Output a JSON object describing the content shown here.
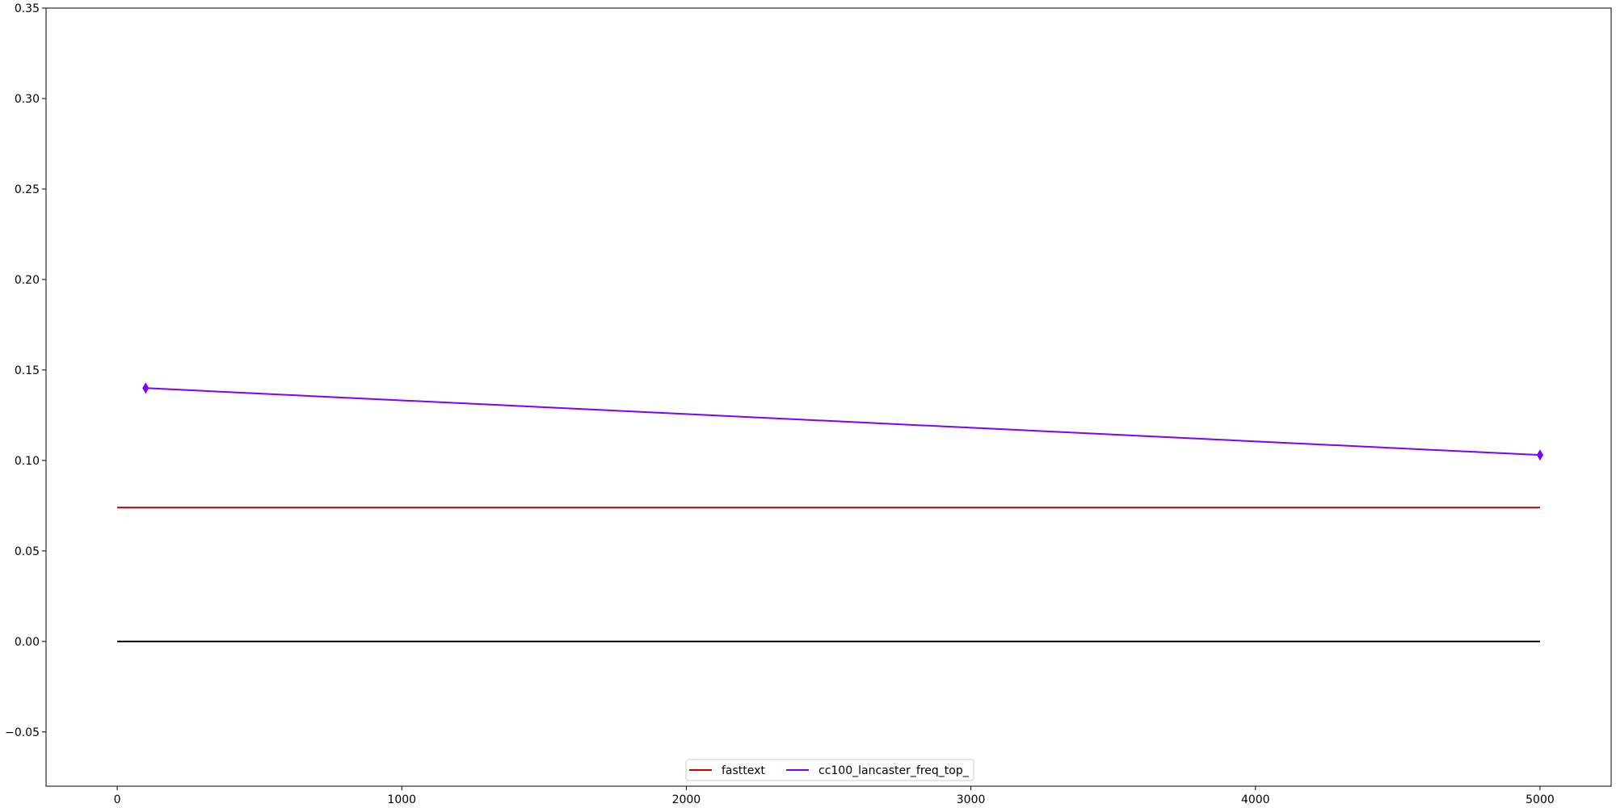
{
  "chart_data": {
    "type": "line",
    "title": "",
    "xlabel": "",
    "ylabel": "",
    "xlim": [
      -250,
      5250
    ],
    "ylim": [
      -0.08,
      0.35
    ],
    "x_ticks": [
      0,
      1000,
      2000,
      3000,
      4000,
      5000
    ],
    "x_tick_labels": [
      "0",
      "1000",
      "2000",
      "3000",
      "4000",
      "5000"
    ],
    "y_ticks": [
      -0.05,
      0.0,
      0.05,
      0.1,
      0.15,
      0.2,
      0.25,
      0.3,
      0.35
    ],
    "y_tick_labels": [
      "−0.05",
      "0.00",
      "0.05",
      "0.10",
      "0.15",
      "0.20",
      "0.25",
      "0.30",
      "0.35"
    ],
    "grid": false,
    "legend_position": "bottom-center",
    "series": [
      {
        "name": "fasttext",
        "color": "#d00000",
        "marker": "none",
        "x": [
          0,
          5000
        ],
        "y": [
          0.074,
          0.074
        ]
      },
      {
        "name": "cc100_lancaster_freq_top_",
        "color": "#7f00ff",
        "marker": "diamond",
        "x": [
          100,
          5000
        ],
        "y": [
          0.14,
          0.103
        ]
      }
    ],
    "reference_lines": [
      {
        "color": "#000000",
        "x": [
          0,
          5000
        ],
        "y": [
          0.0,
          0.0
        ]
      }
    ]
  }
}
